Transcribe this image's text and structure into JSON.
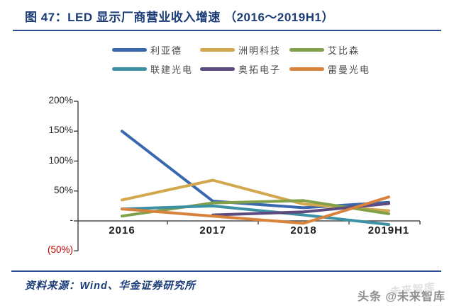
{
  "figure": {
    "title": "图 47：LED 显示厂商营业收入增速 （2016～2019H1）",
    "source": "资料来源：Wind、华金证券研究所"
  },
  "watermark": {
    "text": "头条 @未来智库",
    "ghost": "未来智库"
  },
  "colors": {
    "title_navy": "#1c3d78",
    "rule_navy": "#2e4d8e",
    "axis": "#4d4d4d",
    "negative_tick_red": "#c00000"
  },
  "chart_data": {
    "type": "line",
    "categories": [
      "2016",
      "2017",
      "2018",
      "2019H1"
    ],
    "series": [
      {
        "name": "利亚德",
        "color": "#3a68ae",
        "values": [
          150,
          33,
          22,
          31
        ]
      },
      {
        "name": "洲明科技",
        "color": "#d2a74e",
        "values": [
          35,
          68,
          28,
          17
        ]
      },
      {
        "name": "艾比森",
        "color": "#82a04a",
        "values": [
          8,
          30,
          34,
          12
        ]
      },
      {
        "name": "联建光电",
        "color": "#3c91a5",
        "values": [
          20,
          25,
          10,
          -6
        ]
      },
      {
        "name": "奥拓电子",
        "color": "#5d4b80",
        "values": [
          null,
          10,
          15,
          29
        ]
      },
      {
        "name": "雷曼光电",
        "color": "#d8823c",
        "values": [
          20,
          8,
          -4,
          40
        ]
      }
    ],
    "yticks": [
      {
        "value": 200,
        "label": "200%"
      },
      {
        "value": 150,
        "label": "150%"
      },
      {
        "value": 100,
        "label": "100%"
      },
      {
        "value": 50,
        "label": "50%"
      },
      {
        "value": 0,
        "label": "-"
      },
      {
        "value": -50,
        "label": "(50%)",
        "color": "#c00000"
      }
    ],
    "ylim": [
      -50,
      200
    ],
    "xlabel": "",
    "ylabel": "",
    "grid": false,
    "legend_position": "top"
  }
}
